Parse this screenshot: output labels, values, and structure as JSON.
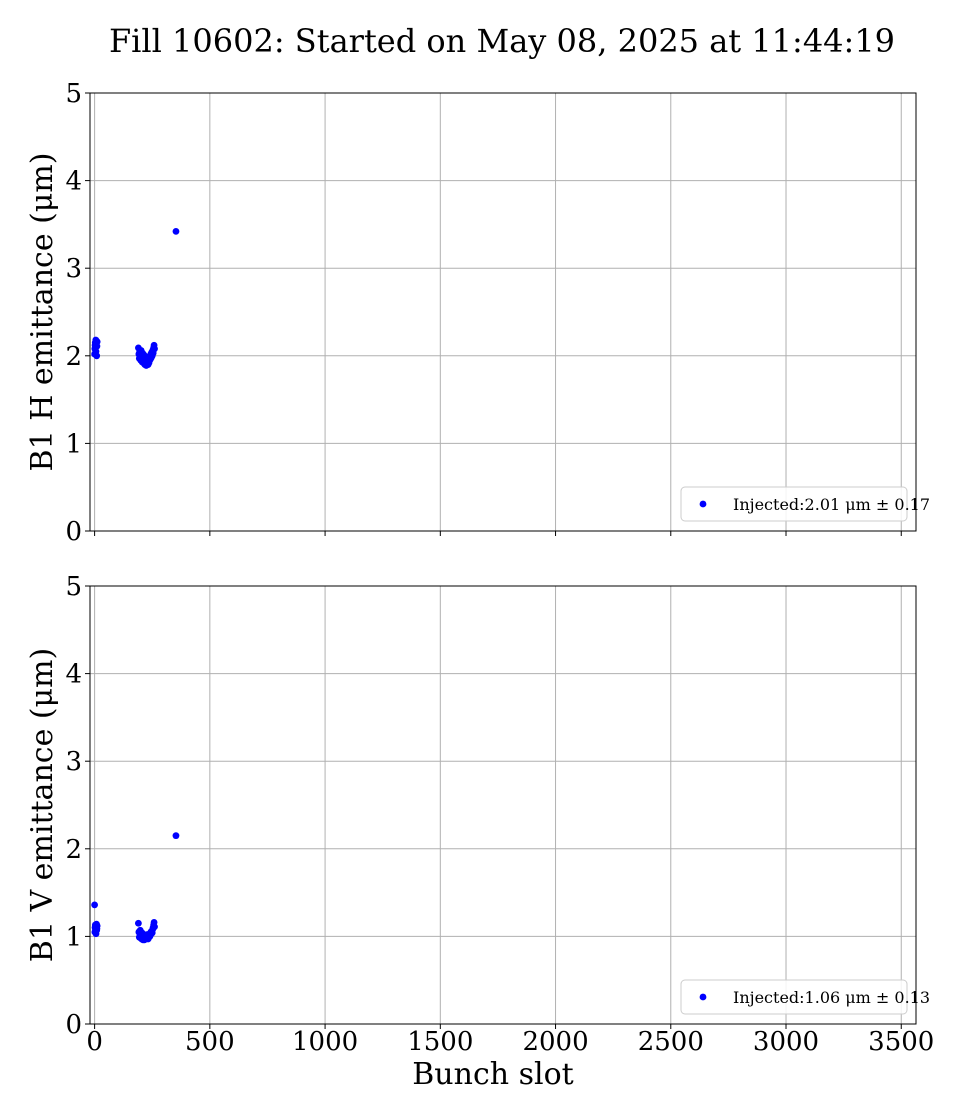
{
  "title": "Fill 10602: Started on May 08, 2025 at 11:44:19",
  "colors": {
    "series": "#0000ff",
    "grid": "#b0b0b0"
  },
  "chart_data": [
    {
      "type": "scatter",
      "xlabel": "",
      "ylabel": "B1 H emittance (μm)",
      "xlim": [
        -20,
        3564
      ],
      "ylim": [
        0,
        5
      ],
      "xticks": [
        0,
        500,
        1000,
        1500,
        2000,
        2500,
        3000,
        3500
      ],
      "yticks": [
        0,
        1,
        2,
        3,
        4,
        5
      ],
      "show_xticklabels": false,
      "grid": true,
      "legend_position": "lower-right",
      "series": [
        {
          "name": "Injected:2.01 μm ± 0.17",
          "x": [
            0,
            1,
            2,
            3,
            4,
            5,
            6,
            7,
            8,
            9,
            10,
            11,
            190,
            192,
            194,
            196,
            198,
            200,
            202,
            204,
            206,
            208,
            210,
            212,
            214,
            216,
            218,
            220,
            222,
            224,
            226,
            228,
            230,
            232,
            234,
            236,
            238,
            240,
            242,
            244,
            246,
            248,
            250,
            252,
            254,
            256,
            258,
            260,
            353
          ],
          "y": [
            2.02,
            2.08,
            2.12,
            2.15,
            2.1,
            2.18,
            2.05,
            2.14,
            2.17,
            2.0,
            2.11,
            2.16,
            2.09,
            2.02,
            1.97,
            2.05,
            2.0,
            1.95,
            2.06,
            1.99,
            1.93,
            2.03,
            1.96,
            1.92,
            2.01,
            1.95,
            1.9,
            1.98,
            1.93,
            1.89,
            1.96,
            1.91,
            1.94,
            1.9,
            1.97,
            1.92,
            1.95,
            2.0,
            1.96,
            2.02,
            1.98,
            2.04,
            2.0,
            2.06,
            2.03,
            2.09,
            2.12,
            2.08,
            3.42
          ]
        }
      ]
    },
    {
      "type": "scatter",
      "xlabel": "Bunch slot",
      "ylabel": "B1 V emittance (μm)",
      "xlim": [
        -20,
        3564
      ],
      "ylim": [
        0,
        5
      ],
      "xticks": [
        0,
        500,
        1000,
        1500,
        2000,
        2500,
        3000,
        3500
      ],
      "yticks": [
        0,
        1,
        2,
        3,
        4,
        5
      ],
      "show_xticklabels": true,
      "grid": true,
      "legend_position": "lower-right",
      "series": [
        {
          "name": "Injected:1.06 μm ± 0.13",
          "x": [
            0,
            1,
            2,
            3,
            4,
            5,
            6,
            7,
            8,
            9,
            10,
            11,
            190,
            192,
            194,
            196,
            198,
            200,
            202,
            204,
            206,
            208,
            210,
            212,
            214,
            216,
            218,
            220,
            222,
            224,
            226,
            228,
            230,
            232,
            234,
            236,
            238,
            240,
            242,
            244,
            246,
            248,
            250,
            252,
            254,
            256,
            258,
            260,
            353
          ],
          "y": [
            1.36,
            1.05,
            1.1,
            1.13,
            1.08,
            1.12,
            1.03,
            1.11,
            1.14,
            1.07,
            1.09,
            1.12,
            1.15,
            1.05,
            0.99,
            1.03,
            1.07,
            0.98,
            1.01,
            0.97,
            1.04,
            0.99,
            0.96,
            1.02,
            0.97,
            0.96,
            1.0,
            0.98,
            0.97,
            0.99,
            1.02,
            0.98,
            1.0,
            0.97,
            1.01,
            0.99,
            1.03,
            1.0,
            1.02,
            1.05,
            1.03,
            1.06,
            1.04,
            1.08,
            1.1,
            1.13,
            1.16,
            1.11,
            2.15
          ]
        }
      ]
    }
  ]
}
